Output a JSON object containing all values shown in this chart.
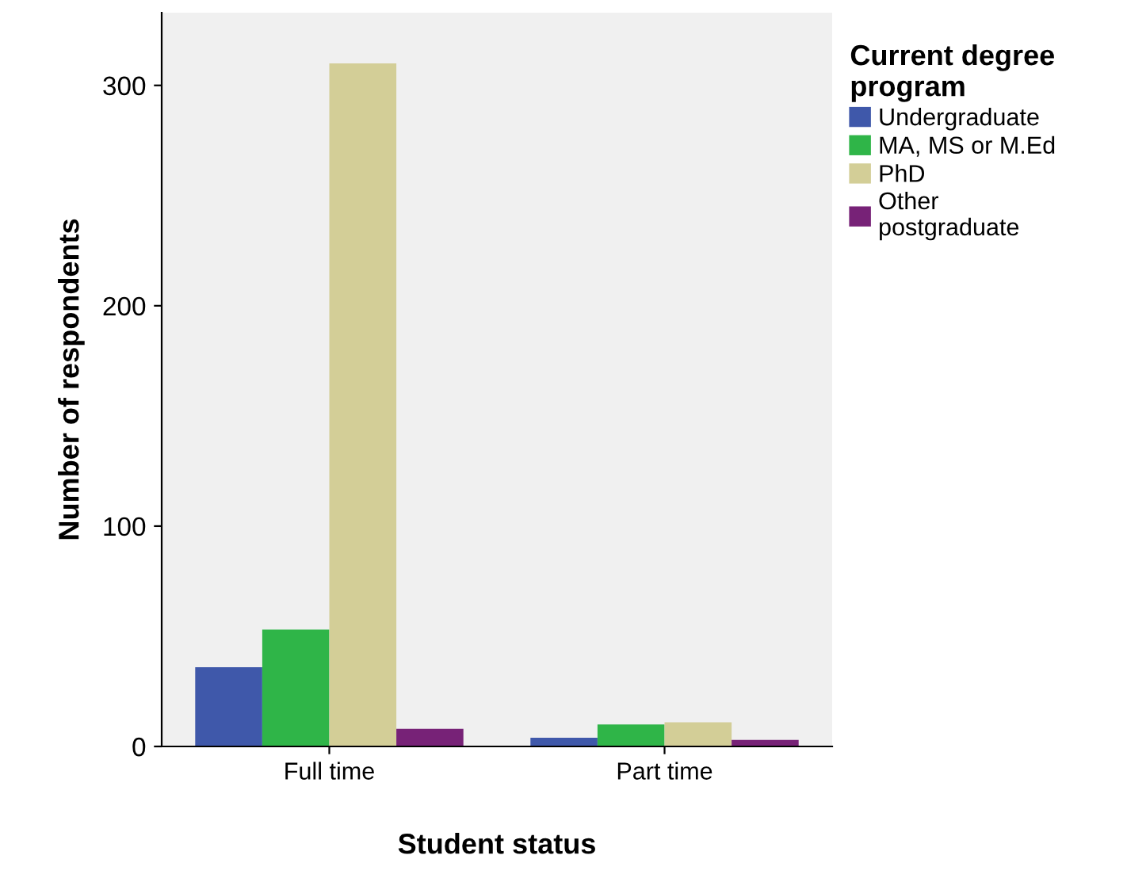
{
  "chart_data": {
    "type": "bar",
    "xlabel": "Student status",
    "ylabel": "Number of respondents",
    "legend_title": "Current degree\nprogram",
    "categories": [
      "Full time",
      "Part time"
    ],
    "series": [
      {
        "name": "Undergraduate",
        "color": "#3f58aa",
        "values": [
          36,
          4
        ]
      },
      {
        "name": "MA, MS or M.Ed",
        "color": "#2fb548",
        "values": [
          53,
          10
        ]
      },
      {
        "name": "PhD",
        "color": "#d3ce97",
        "values": [
          310,
          11
        ]
      },
      {
        "name": "Other\npostgraduate",
        "color": "#772277",
        "values": [
          8,
          3
        ]
      }
    ],
    "ylim": [
      0,
      333
    ],
    "yticks": [
      0,
      100,
      200,
      300
    ],
    "grid": false,
    "legend": "right"
  }
}
